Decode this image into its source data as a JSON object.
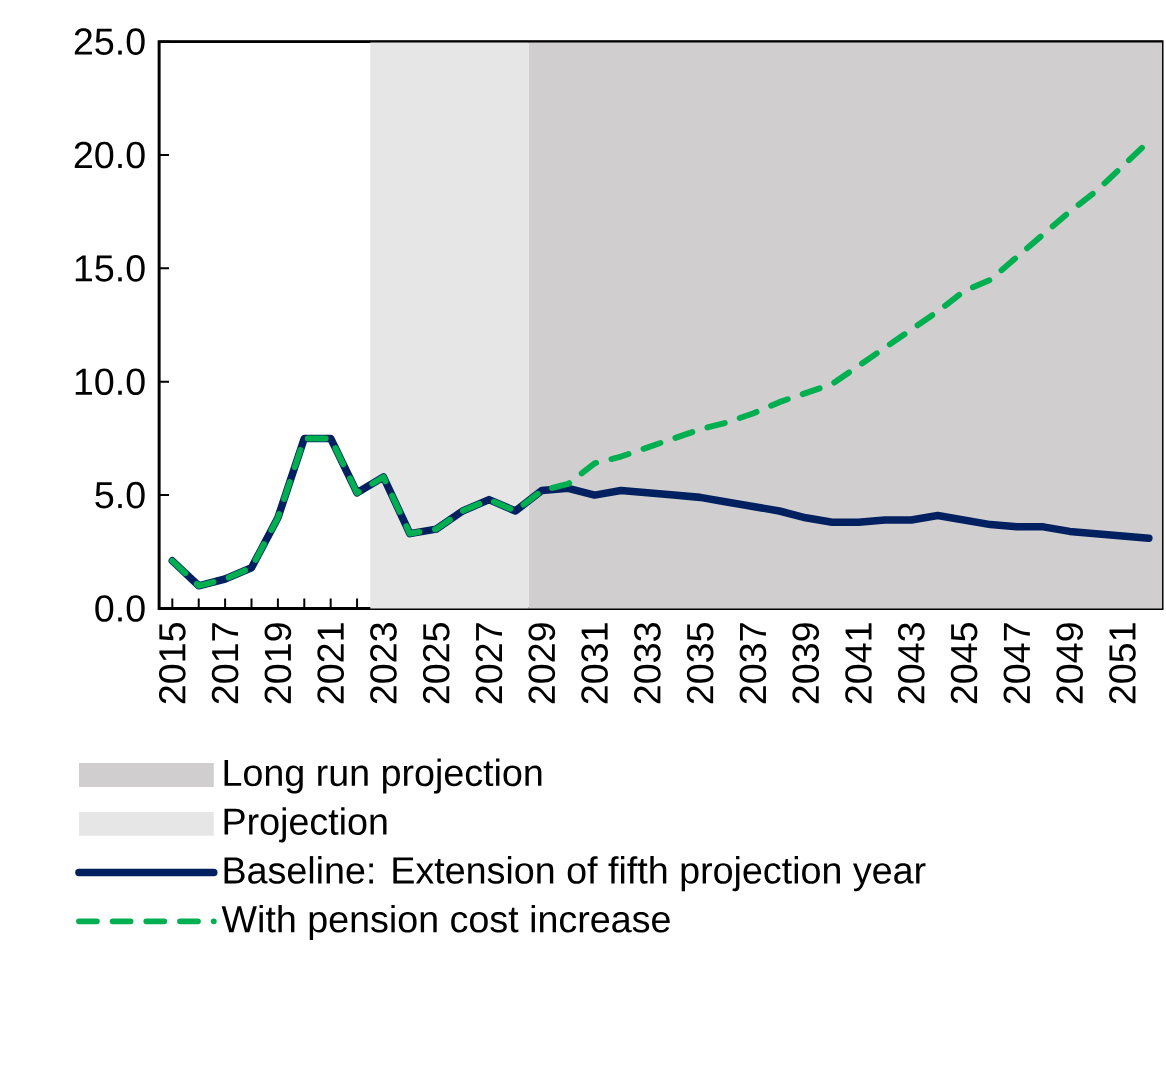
{
  "chart_data": {
    "type": "line",
    "x": [
      2015,
      2016,
      2017,
      2018,
      2019,
      2020,
      2021,
      2022,
      2023,
      2024,
      2025,
      2026,
      2027,
      2028,
      2029,
      2030,
      2031,
      2032,
      2033,
      2034,
      2035,
      2036,
      2037,
      2038,
      2039,
      2040,
      2041,
      2042,
      2043,
      2044,
      2045,
      2046,
      2047,
      2048,
      2049,
      2050,
      2051,
      2052
    ],
    "series": [
      {
        "name": "Baseline: Extension of fifth projection year",
        "color": "#002060",
        "line_style": "solid",
        "values": [
          2.1,
          1.0,
          1.3,
          1.8,
          4.0,
          7.5,
          7.5,
          5.1,
          5.8,
          3.3,
          3.5,
          4.3,
          4.8,
          4.3,
          5.2,
          5.3,
          5.0,
          5.2,
          5.1,
          5.0,
          4.9,
          4.7,
          4.5,
          4.3,
          4.0,
          3.8,
          3.8,
          3.9,
          3.9,
          4.1,
          3.9,
          3.7,
          3.6,
          3.6,
          3.4,
          3.3,
          3.2,
          3.1
        ]
      },
      {
        "name": "With pension cost increase",
        "color": "#00b050",
        "line_style": "dashed",
        "values": [
          2.1,
          1.0,
          1.3,
          1.8,
          4.0,
          7.5,
          7.5,
          5.1,
          5.8,
          3.3,
          3.5,
          4.3,
          4.8,
          4.3,
          5.2,
          5.5,
          6.4,
          6.7,
          7.1,
          7.5,
          7.9,
          8.2,
          8.6,
          9.1,
          9.5,
          9.9,
          10.7,
          11.5,
          12.3,
          13.1,
          14.0,
          14.5,
          15.5,
          16.5,
          17.5,
          18.4,
          19.5,
          20.6
        ]
      }
    ],
    "bands": [
      {
        "axis": "x",
        "from": 2028.5,
        "to": 2052.5,
        "label": "Long run projection",
        "color": "#d0cece"
      },
      {
        "axis": "x",
        "from": 2022.5,
        "to": 2028.5,
        "label": "Projection",
        "color": "#e7e6e6"
      }
    ],
    "xlim": [
      2014.5,
      2052.5
    ],
    "xticks": [
      2015,
      {
        "value": 2016,
        "label": null
      },
      2017,
      {
        "value": 2018,
        "label": null
      },
      2019,
      {
        "value": 2020,
        "label": null
      },
      2021,
      {
        "value": 2022,
        "label": null
      },
      2023,
      {
        "value": 2024,
        "label": null
      },
      2025,
      {
        "value": 2026,
        "label": null
      },
      2027,
      {
        "value": 2028,
        "label": null
      },
      2029,
      {
        "value": 2030,
        "label": null
      },
      2031,
      {
        "value": 2032,
        "label": null
      },
      2033,
      {
        "value": 2034,
        "label": null
      },
      2035,
      {
        "value": 2036,
        "label": null
      },
      2037,
      {
        "value": 2038,
        "label": null
      },
      2039,
      {
        "value": 2040,
        "label": null
      },
      2041,
      {
        "value": 2042,
        "label": null
      },
      2043,
      {
        "value": 2044,
        "label": null
      },
      2045,
      {
        "value": 2046,
        "label": null
      },
      2047,
      {
        "value": 2048,
        "label": null
      },
      2049,
      {
        "value": 2050,
        "label": null
      },
      2051,
      {
        "value": 2052,
        "label": null
      }
    ],
    "ylim": [
      0,
      25
    ],
    "yticks": [
      {
        "value": 0,
        "label": "0.0"
      },
      {
        "value": 5,
        "label": "5.0"
      },
      {
        "value": 10,
        "label": "10.0"
      },
      {
        "value": 15,
        "label": "15.0"
      },
      {
        "value": 20,
        "label": "20.0"
      },
      {
        "value": 25,
        "label": "25.0"
      }
    ],
    "grid": false,
    "legend": "bottom"
  }
}
